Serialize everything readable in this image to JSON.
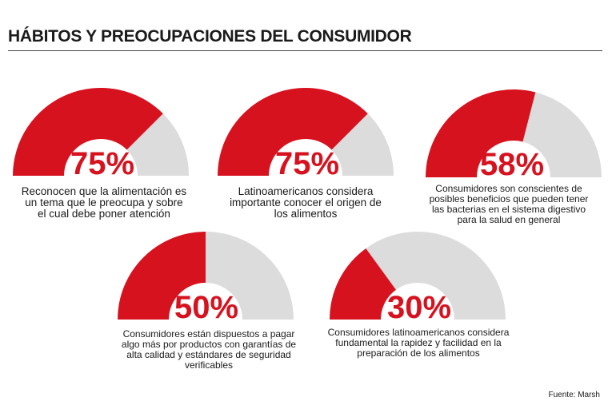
{
  "title": "HÁBITOS Y PREOCUPACIONES DEL CONSUMIDOR",
  "source": "Fuente: Marsh",
  "colors": {
    "filled": "#d7121f",
    "empty": "#dcdcdc",
    "text": "#1a1a1a"
  },
  "chart_data": {
    "type": "gauge",
    "title": "HÁBITOS Y PREOCUPACIONES DEL CONSUMIDOR",
    "max": 100,
    "items": [
      {
        "value": 75,
        "label": "75%",
        "caption": [
          "Reconocen que la alimentación es",
          "un tema que le preocupa y sobre",
          "el cual debe poner atención"
        ]
      },
      {
        "value": 75,
        "label": "75%",
        "caption": [
          "Latinoamericanos considera",
          "importante conocer el origen de",
          "los alimentos"
        ]
      },
      {
        "value": 58,
        "label": "58%",
        "caption": [
          "Consumidores son conscientes de",
          "posibles beneficios que pueden tener",
          "las bacterias en el sistema digestivo",
          "para la salud en general"
        ]
      },
      {
        "value": 50,
        "label": "50%",
        "caption": [
          "Consumidores están dispuestos a pagar",
          "algo más por productos con garantías de",
          "alta calidad y estándares de seguridad",
          "verificables"
        ]
      },
      {
        "value": 30,
        "label": "30%",
        "caption": [
          "Consumidores latinoamericanos considera",
          "fundamental la rapidez y facilidad en la",
          "preparación de los alimentos"
        ]
      }
    ]
  }
}
